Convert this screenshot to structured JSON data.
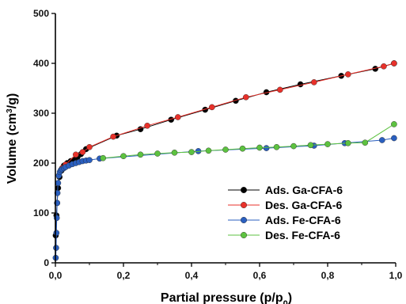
{
  "chart_data": {
    "type": "scatter",
    "xlabel": "Partial pressure (p/p",
    "xlabel_sub": "0",
    "xlabel_close": ")",
    "ylabel": "Volume (cm",
    "ylabel_sup": "3",
    "ylabel_close": "/g)",
    "xlim": [
      0,
      1.0
    ],
    "ylim": [
      0,
      500
    ],
    "x_ticks": [
      {
        "value": 0.0,
        "label": "0,0"
      },
      {
        "value": 0.2,
        "label": "0,2"
      },
      {
        "value": 0.4,
        "label": "0,4"
      },
      {
        "value": 0.6,
        "label": "0,6"
      },
      {
        "value": 0.8,
        "label": "0,8"
      },
      {
        "value": 1.0,
        "label": "1,0"
      }
    ],
    "y_ticks": [
      {
        "value": 0,
        "label": "0"
      },
      {
        "value": 100,
        "label": "100"
      },
      {
        "value": 200,
        "label": "200"
      },
      {
        "value": 300,
        "label": "300"
      },
      {
        "value": 400,
        "label": "400"
      },
      {
        "value": 500,
        "label": "500"
      }
    ],
    "grid": false,
    "legend_position": "bottom-right",
    "series": [
      {
        "name": "Ads. Ga-CFA-6",
        "color": "#000000",
        "points": [
          [
            0.001,
            55
          ],
          [
            0.003,
            95
          ],
          [
            0.005,
            120
          ],
          [
            0.008,
            150
          ],
          [
            0.012,
            172
          ],
          [
            0.018,
            185
          ],
          [
            0.025,
            195
          ],
          [
            0.035,
            200
          ],
          [
            0.045,
            204
          ],
          [
            0.055,
            207
          ],
          [
            0.065,
            212
          ],
          [
            0.075,
            218
          ],
          [
            0.09,
            228
          ],
          [
            0.18,
            255
          ],
          [
            0.25,
            268
          ],
          [
            0.34,
            287
          ],
          [
            0.44,
            307
          ],
          [
            0.53,
            325
          ],
          [
            0.62,
            342
          ],
          [
            0.72,
            358
          ],
          [
            0.84,
            375
          ],
          [
            0.94,
            389
          ],
          [
            0.995,
            400
          ]
        ]
      },
      {
        "name": "Des. Ga-CFA-6",
        "color": "#e8312a",
        "points": [
          [
            0.02,
            190
          ],
          [
            0.03,
            197
          ],
          [
            0.06,
            217
          ],
          [
            0.08,
            222
          ],
          [
            0.1,
            232
          ],
          [
            0.17,
            253
          ],
          [
            0.27,
            275
          ],
          [
            0.36,
            292
          ],
          [
            0.46,
            312
          ],
          [
            0.56,
            332
          ],
          [
            0.66,
            347
          ],
          [
            0.76,
            362
          ],
          [
            0.86,
            378
          ],
          [
            0.965,
            394
          ],
          [
            0.995,
            400
          ]
        ]
      },
      {
        "name": "Ads. Fe-CFA-6",
        "color": "#2a5fbf",
        "points": [
          [
            0.001,
            10
          ],
          [
            0.002,
            30
          ],
          [
            0.003,
            60
          ],
          [
            0.004,
            90
          ],
          [
            0.005,
            120
          ],
          [
            0.006,
            140
          ],
          [
            0.008,
            160
          ],
          [
            0.01,
            175
          ],
          [
            0.013,
            182
          ],
          [
            0.016,
            186
          ],
          [
            0.02,
            188
          ],
          [
            0.025,
            190
          ],
          [
            0.03,
            192
          ],
          [
            0.04,
            195
          ],
          [
            0.05,
            198
          ],
          [
            0.06,
            200
          ],
          [
            0.07,
            202
          ],
          [
            0.08,
            204
          ],
          [
            0.09,
            205
          ],
          [
            0.1,
            206
          ],
          [
            0.13,
            209
          ],
          [
            0.42,
            224
          ],
          [
            0.62,
            230
          ],
          [
            0.76,
            235
          ],
          [
            0.85,
            240
          ],
          [
            0.96,
            246
          ],
          [
            0.995,
            250
          ]
        ]
      },
      {
        "name": "Des. Fe-CFA-6",
        "color": "#5dc240",
        "points": [
          [
            0.14,
            210
          ],
          [
            0.2,
            214
          ],
          [
            0.25,
            217
          ],
          [
            0.3,
            219
          ],
          [
            0.35,
            221
          ],
          [
            0.4,
            222
          ],
          [
            0.45,
            225
          ],
          [
            0.5,
            227
          ],
          [
            0.55,
            229
          ],
          [
            0.6,
            231
          ],
          [
            0.65,
            232
          ],
          [
            0.7,
            234
          ],
          [
            0.75,
            236
          ],
          [
            0.8,
            238
          ],
          [
            0.86,
            240
          ],
          [
            0.91,
            241
          ],
          [
            0.995,
            278
          ]
        ]
      }
    ]
  }
}
